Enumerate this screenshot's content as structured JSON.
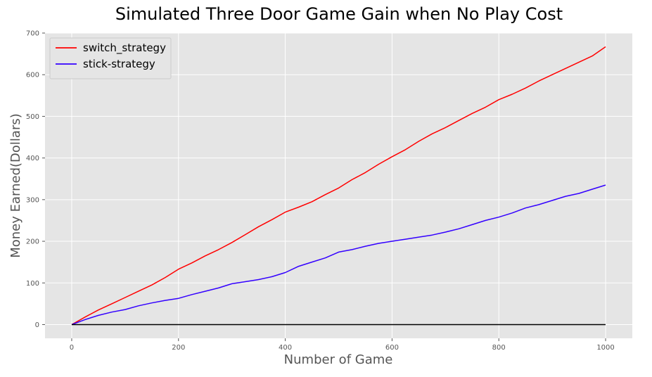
{
  "chart_data": {
    "type": "line",
    "title": "Simulated Three Door Game Gain when No Play Cost",
    "xlabel": "Number of Game",
    "ylabel": "Money Earned(Dollars)",
    "xlim": [
      -50,
      1050
    ],
    "ylim": [
      -33,
      700
    ],
    "xticks": [
      0,
      200,
      400,
      600,
      800,
      1000
    ],
    "yticks": [
      0,
      100,
      200,
      300,
      400,
      500,
      600,
      700
    ],
    "grid": true,
    "legend_position": "top-left",
    "background_color": "#e5e5e5",
    "series": [
      {
        "name": "switch_strategy",
        "color": "#ff0000",
        "x": [
          0,
          25,
          50,
          75,
          100,
          125,
          150,
          175,
          200,
          225,
          250,
          275,
          300,
          325,
          350,
          375,
          400,
          425,
          450,
          475,
          500,
          525,
          550,
          575,
          600,
          625,
          650,
          675,
          700,
          725,
          750,
          775,
          800,
          825,
          850,
          875,
          900,
          925,
          950,
          975,
          1000
        ],
        "values": [
          0,
          18,
          35,
          50,
          65,
          80,
          95,
          113,
          133,
          148,
          165,
          180,
          197,
          216,
          235,
          252,
          270,
          282,
          295,
          312,
          328,
          348,
          365,
          385,
          403,
          420,
          440,
          458,
          473,
          490,
          507,
          522,
          540,
          553,
          568,
          585,
          600,
          615,
          630,
          645,
          667
        ]
      },
      {
        "name": "stick-strategy",
        "color": "#3300ff",
        "x": [
          0,
          25,
          50,
          75,
          100,
          125,
          150,
          175,
          200,
          225,
          250,
          275,
          300,
          325,
          350,
          375,
          400,
          425,
          450,
          475,
          500,
          525,
          550,
          575,
          600,
          625,
          650,
          675,
          700,
          725,
          750,
          775,
          800,
          825,
          850,
          875,
          900,
          925,
          950,
          975,
          1000
        ],
        "values": [
          0,
          12,
          22,
          30,
          36,
          45,
          52,
          58,
          63,
          72,
          80,
          88,
          98,
          103,
          108,
          115,
          125,
          140,
          150,
          160,
          174,
          180,
          188,
          195,
          200,
          205,
          210,
          215,
          222,
          230,
          240,
          250,
          258,
          268,
          280,
          288,
          298,
          308,
          315,
          325,
          335
        ]
      },
      {
        "name": "",
        "color": "#000000",
        "x": [
          0,
          1000
        ],
        "values": [
          0,
          0
        ]
      }
    ]
  }
}
